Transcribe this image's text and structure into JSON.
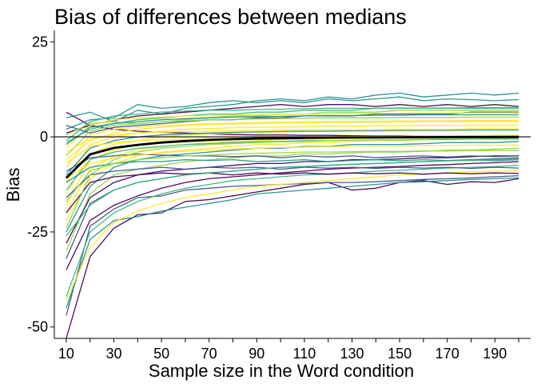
{
  "chart_data": {
    "type": "line",
    "title": "Bias of differences between medians",
    "xlabel": "Sample size in the Word condition",
    "ylabel": "Bias",
    "xlim": [
      5,
      205
    ],
    "ylim": [
      -53,
      28
    ],
    "x_ticks": [
      10,
      30,
      50,
      70,
      90,
      110,
      130,
      150,
      170,
      190
    ],
    "x_minor_ticks": [
      20,
      40,
      60,
      80,
      100,
      120,
      140,
      160,
      180,
      200
    ],
    "y_ticks": [
      25,
      0,
      -25,
      -50
    ],
    "x": [
      10,
      20,
      30,
      40,
      50,
      60,
      70,
      80,
      90,
      100,
      110,
      120,
      130,
      140,
      150,
      160,
      170,
      180,
      190,
      200
    ],
    "reference_line_y": 0,
    "grid": false,
    "legend": "none",
    "palette": [
      "#440154",
      "#3b528b",
      "#21908c",
      "#35b779",
      "#8fd744",
      "#fde725"
    ],
    "mean_series": {
      "color": "#000000",
      "values": [
        -10.8,
        -4.6,
        -2.9,
        -2.1,
        -1.5,
        -1.1,
        -0.8,
        -0.6,
        -0.45,
        -0.35,
        -0.28,
        -0.22,
        -0.18,
        -0.14,
        -0.11,
        -0.09,
        -0.07,
        -0.05,
        -0.04,
        -0.03
      ]
    },
    "series": [
      {
        "values": [
          -53.0,
          -31.5,
          -24.0,
          -20.5,
          -20.0,
          -17.0,
          -16.5,
          -15.5,
          -14.5,
          -13.5,
          -12.5,
          -12.0,
          -14.0,
          -13.5,
          -12.0,
          -11.5,
          -12.5,
          -11.8,
          -12.0,
          -11.0
        ],
        "color": "#440154"
      },
      {
        "values": [
          -47.0,
          -23.5,
          -19.0,
          -16.0,
          -15.5,
          -14.0,
          -13.5,
          -13.0,
          -12.8,
          -12.5,
          -12.3,
          -12.0,
          -12.0,
          -11.8,
          -11.5,
          -11.2,
          -11.0,
          -10.8,
          -10.5,
          -10.2
        ],
        "color": "#3b528b"
      },
      {
        "values": [
          -45.0,
          -27.0,
          -22.0,
          -21.0,
          -19.5,
          -18.5,
          -17.5,
          -16.5,
          -15.0,
          -14.5,
          -14.0,
          -13.5,
          -13.0,
          -12.5,
          -12.0,
          -11.8,
          -11.5,
          -11.2,
          -11.0,
          -10.8
        ],
        "color": "#21908c"
      },
      {
        "values": [
          -42.0,
          -25.0,
          -20.0,
          -17.0,
          -15.0,
          -13.5,
          -12.5,
          -11.5,
          -11.0,
          -10.5,
          -10.0,
          -9.8,
          -9.5,
          -9.0,
          -8.8,
          -8.5,
          -8.2,
          -8.0,
          -7.8,
          -7.5
        ],
        "color": "#35b779"
      },
      {
        "values": [
          -43.0,
          -29.0,
          -22.5,
          -19.5,
          -17.5,
          -16.0,
          -15.0,
          -14.0,
          -13.0,
          -12.5,
          -12.0,
          -11.5,
          -11.0,
          -10.5,
          -10.0,
          -9.8,
          -9.5,
          -9.2,
          -9.0,
          -8.8
        ],
        "color": "#fde725"
      },
      {
        "values": [
          -35.0,
          -22.0,
          -18.0,
          -15.5,
          -13.5,
          -12.0,
          -11.0,
          -10.5,
          -10.0,
          -9.5,
          -9.0,
          -8.5,
          -8.2,
          -8.0,
          -7.8,
          -7.5,
          -7.3,
          -7.0,
          -6.8,
          -6.5
        ],
        "color": "#440154"
      },
      {
        "values": [
          -32.0,
          -17.5,
          -14.0,
          -12.0,
          -11.0,
          -10.0,
          -9.5,
          -9.0,
          -8.5,
          -8.0,
          -7.8,
          -7.5,
          -7.2,
          -7.0,
          -6.8,
          -6.5,
          -6.3,
          -6.0,
          -5.8,
          -5.5
        ],
        "color": "#3b528b"
      },
      {
        "values": [
          6.5,
          3.0,
          2.0,
          1.5,
          1.2,
          1.0,
          0.8,
          0.6,
          0.5,
          0.5,
          0.4,
          0.4,
          0.3,
          0.3,
          0.3,
          0.2,
          0.2,
          0.2,
          0.2,
          0.2
        ],
        "color": "#440154"
      },
      {
        "values": [
          5.0,
          6.5,
          4.0,
          7.0,
          6.0,
          7.5,
          8.0,
          8.5,
          9.5,
          10.0,
          9.5,
          10.5,
          10.0,
          11.0,
          11.5,
          10.5,
          11.0,
          11.5,
          11.0,
          11.5
        ],
        "color": "#21908c"
      },
      {
        "values": [
          2.0,
          4.5,
          5.0,
          8.5,
          7.5,
          8.0,
          9.0,
          9.5,
          9.0,
          9.5,
          9.0,
          10.0,
          9.5,
          10.0,
          10.5,
          9.5,
          10.0,
          9.8,
          9.5,
          9.8
        ],
        "color": "#21908c"
      },
      {
        "values": [
          1.0,
          3.0,
          4.5,
          5.5,
          6.0,
          6.5,
          7.0,
          7.5,
          8.0,
          8.5,
          8.0,
          8.5,
          8.5,
          8.0,
          8.5,
          8.0,
          8.5,
          8.0,
          8.5,
          8.0
        ],
        "color": "#440154"
      },
      {
        "values": [
          -1.5,
          2.0,
          3.5,
          4.5,
          5.0,
          5.5,
          6.0,
          6.0,
          6.5,
          6.5,
          7.0,
          7.0,
          7.0,
          7.5,
          7.5,
          7.5,
          7.5,
          7.5,
          7.5,
          7.5
        ],
        "color": "#35b779"
      },
      {
        "values": [
          3.0,
          1.0,
          2.5,
          3.0,
          3.5,
          4.0,
          4.5,
          4.5,
          5.0,
          5.0,
          5.5,
          5.5,
          5.5,
          6.0,
          6.0,
          6.0,
          6.0,
          6.5,
          6.5,
          6.5
        ],
        "color": "#3b528b"
      },
      {
        "values": [
          0.5,
          3.5,
          4.0,
          3.5,
          4.0,
          4.5,
          5.0,
          5.5,
          5.5,
          6.0,
          6.0,
          6.5,
          6.5,
          6.5,
          7.0,
          7.0,
          7.0,
          7.0,
          7.0,
          7.0
        ],
        "color": "#8fd744"
      },
      {
        "values": [
          -25.0,
          -13.0,
          -8.0,
          -6.0,
          -5.0,
          -4.5,
          -4.0,
          -3.5,
          -3.0,
          -3.0,
          -2.5,
          -2.5,
          -2.0,
          -2.0,
          -2.0,
          -1.8,
          -1.5,
          -1.5,
          -1.5,
          -1.2
        ],
        "color": "#21908c"
      },
      {
        "values": [
          -30.0,
          -15.0,
          -10.0,
          -8.5,
          -7.5,
          -6.5,
          -6.0,
          -5.5,
          -5.0,
          -5.0,
          -4.5,
          -4.5,
          -4.2,
          -4.0,
          -4.0,
          -3.8,
          -3.5,
          -3.5,
          -3.2,
          -3.0
        ],
        "color": "#8fd744"
      },
      {
        "values": [
          -28.0,
          -16.0,
          -12.0,
          -10.0,
          -9.0,
          -8.5,
          -8.0,
          -7.5,
          -7.0,
          -7.0,
          -6.5,
          -6.5,
          -6.0,
          -6.0,
          -5.8,
          -5.5,
          -5.5,
          -5.2,
          -5.0,
          -5.0
        ],
        "color": "#440154"
      },
      {
        "values": [
          -22.0,
          -11.0,
          -7.0,
          -5.0,
          -4.0,
          -3.5,
          -3.0,
          -2.5,
          -2.0,
          -2.0,
          -1.5,
          -1.5,
          -1.2,
          -1.0,
          -1.0,
          -0.8,
          -0.7,
          -0.6,
          -0.5,
          -0.4
        ],
        "color": "#fde725"
      },
      {
        "values": [
          -20.0,
          -8.5,
          -5.0,
          -3.5,
          -2.5,
          -2.0,
          -1.5,
          -1.2,
          -1.0,
          -0.8,
          -0.6,
          -0.5,
          -0.4,
          -0.3,
          -0.2,
          -0.2,
          -0.1,
          -0.1,
          0.0,
          0.0
        ],
        "color": "#fde725"
      },
      {
        "values": [
          -18.0,
          -6.0,
          -3.5,
          -2.0,
          -1.5,
          -1.0,
          -0.8,
          -0.5,
          -0.3,
          -0.2,
          -0.1,
          0.0,
          0.1,
          0.2,
          0.2,
          0.3,
          0.3,
          0.3,
          0.4,
          0.4
        ],
        "color": "#fde725"
      },
      {
        "values": [
          -15.0,
          -4.5,
          -2.0,
          -1.0,
          0.0,
          0.5,
          0.8,
          1.0,
          1.2,
          1.3,
          1.4,
          1.5,
          1.5,
          1.6,
          1.6,
          1.7,
          1.7,
          1.8,
          1.8,
          1.8
        ],
        "color": "#fde725"
      },
      {
        "values": [
          -12.0,
          -2.0,
          0.0,
          1.0,
          1.5,
          2.0,
          2.2,
          2.4,
          2.5,
          2.6,
          2.7,
          2.8,
          2.8,
          2.9,
          2.9,
          3.0,
          3.0,
          3.0,
          3.0,
          3.0
        ],
        "color": "#fde725"
      },
      {
        "values": [
          -8.0,
          0.5,
          2.0,
          2.5,
          3.0,
          3.2,
          3.5,
          3.6,
          3.8,
          3.9,
          4.0,
          4.0,
          4.1,
          4.1,
          4.2,
          4.2,
          4.2,
          4.3,
          4.3,
          4.3
        ],
        "color": "#fde725"
      },
      {
        "values": [
          -5.0,
          1.5,
          3.0,
          3.5,
          4.0,
          4.2,
          4.5,
          4.6,
          4.7,
          4.8,
          4.9,
          5.0,
          5.0,
          5.0,
          5.1,
          5.1,
          5.1,
          5.2,
          5.2,
          5.2
        ],
        "color": "#8fd744"
      },
      {
        "values": [
          -14.0,
          -6.0,
          -4.0,
          -3.0,
          -2.5,
          -2.0,
          -1.8,
          -1.5,
          -1.3,
          -1.2,
          -1.0,
          -1.0,
          -0.9,
          -0.8,
          -0.8,
          -0.7,
          -0.7,
          -0.6,
          -0.6,
          -0.6
        ],
        "color": "#35b779"
      },
      {
        "values": [
          -10.0,
          -3.0,
          -1.0,
          0.0,
          0.5,
          0.8,
          1.0,
          1.2,
          1.3,
          1.4,
          1.5,
          1.5,
          1.6,
          1.6,
          1.7,
          1.7,
          1.7,
          1.8,
          1.8,
          1.8
        ],
        "color": "#21908c"
      },
      {
        "values": [
          -9.0,
          -5.5,
          -5.0,
          -4.5,
          -4.8,
          -5.0,
          -5.0,
          -5.2,
          -5.0,
          -5.5,
          -5.0,
          -5.3,
          -5.0,
          -5.5,
          -5.2,
          -5.0,
          -5.3,
          -5.0,
          -5.2,
          -5.0
        ],
        "color": "#3b528b"
      },
      {
        "values": [
          -12.0,
          -8.0,
          -7.0,
          -6.5,
          -6.5,
          -6.0,
          -6.2,
          -6.0,
          -6.5,
          -6.3,
          -6.0,
          -6.5,
          -6.2,
          -6.0,
          -6.3,
          -6.0,
          -6.2,
          -6.0,
          -6.3,
          -6.0
        ],
        "color": "#21908c"
      },
      {
        "values": [
          -16.0,
          -10.0,
          -9.0,
          -8.5,
          -8.0,
          -8.5,
          -8.0,
          -8.2,
          -8.0,
          -8.5,
          -8.0,
          -8.2,
          -8.0,
          -8.3,
          -8.0,
          -8.2,
          -8.0,
          -8.3,
          -8.0,
          -8.2
        ],
        "color": "#3b528b"
      },
      {
        "values": [
          -20.0,
          -12.0,
          -10.5,
          -10.0,
          -9.5,
          -9.8,
          -9.5,
          -10.0,
          -9.5,
          -9.8,
          -9.5,
          -9.8,
          -9.5,
          -9.7,
          -9.5,
          -9.8,
          -9.5,
          -9.7,
          -9.5,
          -9.6
        ],
        "color": "#440154"
      },
      {
        "values": [
          -3.0,
          3.0,
          4.5,
          5.0,
          5.2,
          5.5,
          5.5,
          5.8,
          5.8,
          6.0,
          6.0,
          6.0,
          6.2,
          6.2,
          6.2,
          6.3,
          6.3,
          6.3,
          6.3,
          6.3
        ],
        "color": "#fde725"
      },
      {
        "values": [
          -6.0,
          -1.0,
          1.0,
          2.0,
          2.5,
          3.0,
          3.2,
          3.4,
          3.5,
          3.6,
          3.7,
          3.8,
          3.8,
          3.9,
          3.9,
          4.0,
          4.0,
          4.0,
          4.0,
          4.0
        ],
        "color": "#fde725"
      },
      {
        "values": [
          -24.0,
          -10.0,
          -6.0,
          -4.0,
          -3.0,
          -2.5,
          -2.0,
          -1.8,
          -1.5,
          -1.3,
          -1.2,
          -1.0,
          -0.9,
          -0.8,
          -0.7,
          -0.6,
          -0.5,
          -0.5,
          -0.4,
          -0.4
        ],
        "color": "#8fd744"
      },
      {
        "values": [
          -26.0,
          -18.0,
          -14.0,
          -12.0,
          -11.0,
          -10.0,
          -9.5,
          -9.0,
          -8.5,
          -8.0,
          -7.8,
          -7.5,
          -7.2,
          -7.0,
          -6.8,
          -6.5,
          -6.3,
          -6.2,
          -6.0,
          -5.8
        ],
        "color": "#35b779"
      },
      {
        "values": [
          -2.0,
          2.5,
          3.5,
          4.0,
          4.5,
          4.8,
          5.0,
          5.2,
          5.3,
          5.4,
          5.5,
          5.6,
          5.6,
          5.7,
          5.7,
          5.8,
          5.8,
          5.8,
          5.8,
          5.8
        ],
        "color": "#21908c"
      },
      {
        "values": [
          -7.0,
          -2.5,
          -1.5,
          -1.0,
          -0.8,
          -0.6,
          -0.5,
          -0.4,
          -0.3,
          -0.3,
          -0.2,
          -0.2,
          -0.2,
          -0.1,
          -0.1,
          -0.1,
          -0.1,
          0.0,
          0.0,
          0.0
        ],
        "color": "#fde725"
      },
      {
        "values": [
          -4.0,
          -0.5,
          0.5,
          1.0,
          1.2,
          1.4,
          1.5,
          1.6,
          1.7,
          1.8,
          1.8,
          1.9,
          1.9,
          2.0,
          2.0,
          2.0,
          2.0,
          2.1,
          2.1,
          2.1
        ],
        "color": "#fde725"
      },
      {
        "values": [
          -11.0,
          -7.0,
          -5.5,
          -4.8,
          -4.2,
          -3.8,
          -3.5,
          -3.2,
          -3.0,
          -2.8,
          -2.7,
          -2.6,
          -2.5,
          -2.4,
          -2.4,
          -2.3,
          -2.3,
          -2.2,
          -2.2,
          -2.2
        ],
        "color": "#fde725"
      },
      {
        "values": [
          -17.0,
          -9.0,
          -7.0,
          -6.0,
          -5.5,
          -5.0,
          -4.8,
          -4.5,
          -4.3,
          -4.2,
          -4.0,
          -4.0,
          -3.9,
          -3.8,
          -3.8,
          -3.7,
          -3.7,
          -3.6,
          -3.6,
          -3.6
        ],
        "color": "#8fd744"
      },
      {
        "values": [
          -1.0,
          4.0,
          5.5,
          6.0,
          6.5,
          6.8,
          7.0,
          7.0,
          7.2,
          7.3,
          7.4,
          7.5,
          7.5,
          7.5,
          7.6,
          7.6,
          7.6,
          7.7,
          7.7,
          7.7
        ],
        "color": "#35b779"
      }
    ]
  }
}
